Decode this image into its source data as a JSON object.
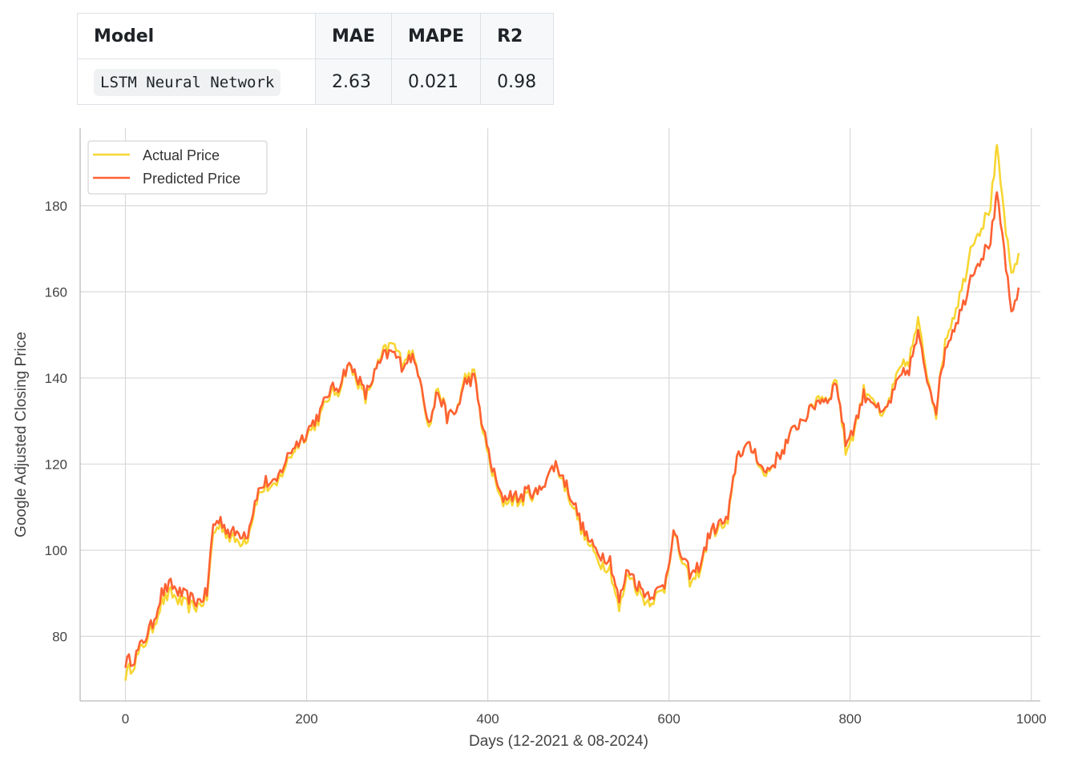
{
  "table": {
    "headers": [
      "Model",
      "MAE",
      "MAPE",
      "R2"
    ],
    "row": {
      "model": "LSTM Neural Network",
      "mae": "2.63",
      "mape": "0.021",
      "r2": "0.98"
    }
  },
  "chart_data": {
    "type": "line",
    "xlabel": "Days (12-2021 & 08-2024)",
    "ylabel": "Google Adjusted Closing Price",
    "xlim": [
      -50,
      1010
    ],
    "ylim": [
      65,
      198
    ],
    "xticks": [
      0,
      200,
      400,
      600,
      800,
      1000
    ],
    "yticks": [
      80,
      100,
      120,
      140,
      160,
      180
    ],
    "grid": true,
    "legend_position": "top-left",
    "series": [
      {
        "name": "Actual Price",
        "color": "#f7d633",
        "keypoints": [
          [
            0,
            71
          ],
          [
            10,
            74
          ],
          [
            20,
            78
          ],
          [
            30,
            82
          ],
          [
            40,
            88
          ],
          [
            50,
            90
          ],
          [
            60,
            88
          ],
          [
            70,
            87
          ],
          [
            80,
            87
          ],
          [
            90,
            89
          ],
          [
            97,
            104
          ],
          [
            105,
            106
          ],
          [
            115,
            103
          ],
          [
            125,
            102
          ],
          [
            135,
            103
          ],
          [
            145,
            112
          ],
          [
            155,
            115
          ],
          [
            165,
            114
          ],
          [
            175,
            119
          ],
          [
            185,
            123
          ],
          [
            195,
            126
          ],
          [
            205,
            128
          ],
          [
            215,
            131
          ],
          [
            225,
            136
          ],
          [
            235,
            137
          ],
          [
            245,
            143
          ],
          [
            255,
            140
          ],
          [
            265,
            135
          ],
          [
            275,
            141
          ],
          [
            285,
            146
          ],
          [
            295,
            148
          ],
          [
            305,
            144
          ],
          [
            315,
            146
          ],
          [
            325,
            141
          ],
          [
            335,
            128
          ],
          [
            345,
            138
          ],
          [
            355,
            131
          ],
          [
            365,
            132
          ],
          [
            375,
            140
          ],
          [
            385,
            141
          ],
          [
            395,
            127
          ],
          [
            405,
            118
          ],
          [
            415,
            111
          ],
          [
            425,
            112
          ],
          [
            435,
            111
          ],
          [
            445,
            113
          ],
          [
            455,
            113
          ],
          [
            465,
            117
          ],
          [
            475,
            120
          ],
          [
            485,
            115
          ],
          [
            495,
            110
          ],
          [
            505,
            104
          ],
          [
            515,
            100
          ],
          [
            525,
            97
          ],
          [
            535,
            96
          ],
          [
            545,
            86
          ],
          [
            555,
            95
          ],
          [
            565,
            91
          ],
          [
            575,
            88
          ],
          [
            585,
            89
          ],
          [
            595,
            91
          ],
          [
            605,
            104
          ],
          [
            615,
            97
          ],
          [
            625,
            92
          ],
          [
            635,
            96
          ],
          [
            645,
            104
          ],
          [
            655,
            105
          ],
          [
            665,
            106
          ],
          [
            675,
            122
          ],
          [
            685,
            124
          ],
          [
            695,
            123
          ],
          [
            705,
            117
          ],
          [
            715,
            120
          ],
          [
            725,
            123
          ],
          [
            735,
            127
          ],
          [
            745,
            130
          ],
          [
            755,
            132
          ],
          [
            765,
            136
          ],
          [
            775,
            135
          ],
          [
            785,
            140
          ],
          [
            795,
            123
          ],
          [
            805,
            128
          ],
          [
            815,
            137
          ],
          [
            825,
            136
          ],
          [
            835,
            130
          ],
          [
            845,
            136
          ],
          [
            855,
            142
          ],
          [
            865,
            144
          ],
          [
            875,
            153
          ],
          [
            885,
            141
          ],
          [
            895,
            132
          ],
          [
            905,
            149
          ],
          [
            915,
            155
          ],
          [
            925,
            162
          ],
          [
            935,
            172
          ],
          [
            945,
            175
          ],
          [
            955,
            180
          ],
          [
            962,
            193
          ],
          [
            970,
            178
          ],
          [
            978,
            163
          ],
          [
            986,
            169
          ]
        ]
      },
      {
        "name": "Predicted Price",
        "color": "#ff6133",
        "keypoints": [
          [
            0,
            74
          ],
          [
            10,
            75
          ],
          [
            20,
            79
          ],
          [
            30,
            83
          ],
          [
            40,
            90
          ],
          [
            50,
            92
          ],
          [
            60,
            90
          ],
          [
            70,
            89
          ],
          [
            80,
            88
          ],
          [
            90,
            90
          ],
          [
            97,
            106
          ],
          [
            105,
            107
          ],
          [
            115,
            104
          ],
          [
            125,
            104
          ],
          [
            135,
            104
          ],
          [
            145,
            113
          ],
          [
            155,
            116
          ],
          [
            165,
            115
          ],
          [
            175,
            120
          ],
          [
            185,
            124
          ],
          [
            195,
            126
          ],
          [
            205,
            129
          ],
          [
            215,
            132
          ],
          [
            225,
            137
          ],
          [
            235,
            138
          ],
          [
            245,
            143
          ],
          [
            255,
            141
          ],
          [
            265,
            136
          ],
          [
            275,
            141
          ],
          [
            285,
            145
          ],
          [
            295,
            146
          ],
          [
            305,
            143
          ],
          [
            315,
            145
          ],
          [
            325,
            141
          ],
          [
            335,
            129
          ],
          [
            345,
            137
          ],
          [
            355,
            131
          ],
          [
            365,
            132
          ],
          [
            375,
            139
          ],
          [
            385,
            140
          ],
          [
            395,
            128
          ],
          [
            405,
            119
          ],
          [
            415,
            112
          ],
          [
            425,
            113
          ],
          [
            435,
            112
          ],
          [
            445,
            114
          ],
          [
            455,
            113
          ],
          [
            465,
            117
          ],
          [
            475,
            120
          ],
          [
            485,
            116
          ],
          [
            495,
            111
          ],
          [
            505,
            105
          ],
          [
            515,
            101
          ],
          [
            525,
            99
          ],
          [
            535,
            98
          ],
          [
            545,
            88
          ],
          [
            555,
            96
          ],
          [
            565,
            92
          ],
          [
            575,
            90
          ],
          [
            585,
            90
          ],
          [
            595,
            92
          ],
          [
            605,
            104
          ],
          [
            615,
            98
          ],
          [
            625,
            94
          ],
          [
            635,
            97
          ],
          [
            645,
            104
          ],
          [
            655,
            106
          ],
          [
            665,
            107
          ],
          [
            675,
            122
          ],
          [
            685,
            124
          ],
          [
            695,
            123
          ],
          [
            705,
            118
          ],
          [
            715,
            120
          ],
          [
            725,
            123
          ],
          [
            735,
            127
          ],
          [
            745,
            130
          ],
          [
            755,
            132
          ],
          [
            765,
            135
          ],
          [
            775,
            135
          ],
          [
            785,
            139
          ],
          [
            795,
            125
          ],
          [
            805,
            129
          ],
          [
            815,
            136
          ],
          [
            825,
            135
          ],
          [
            835,
            131
          ],
          [
            845,
            135
          ],
          [
            855,
            140
          ],
          [
            865,
            142
          ],
          [
            875,
            150
          ],
          [
            885,
            140
          ],
          [
            895,
            133
          ],
          [
            905,
            147
          ],
          [
            915,
            152
          ],
          [
            925,
            157
          ],
          [
            935,
            165
          ],
          [
            945,
            168
          ],
          [
            955,
            172
          ],
          [
            962,
            182
          ],
          [
            970,
            170
          ],
          [
            978,
            154
          ],
          [
            986,
            161
          ]
        ]
      }
    ]
  }
}
